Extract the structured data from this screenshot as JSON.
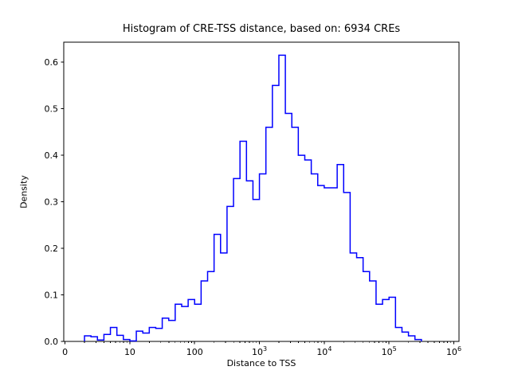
{
  "figure": {
    "background": "#ffffff"
  },
  "chart_data": {
    "type": "bar",
    "subtype": "step-histogram",
    "title": "Histogram of CRE-TSS distance, based on: 6934 CREs",
    "xlabel": "Distance to TSS",
    "ylabel": "Density",
    "x_scale": "log10",
    "line_color": "#0000ff",
    "axis_color": "#000000",
    "grid": false,
    "legend": false,
    "xlim_log10": [
      -0.02,
      6.08
    ],
    "ylim": [
      0,
      0.643
    ],
    "x_ticks": [
      {
        "v": 0,
        "label": "0"
      },
      {
        "v": 1,
        "label": "10"
      },
      {
        "v": 2,
        "label": "100"
      },
      {
        "v": 3,
        "label": "10^3"
      },
      {
        "v": 4,
        "label": "10^4"
      },
      {
        "v": 5,
        "label": "10^5"
      },
      {
        "v": 6,
        "label": "10^6"
      }
    ],
    "x_minor_ticks": true,
    "y_ticks": [
      0.0,
      0.1,
      0.2,
      0.3,
      0.4,
      0.5,
      0.6
    ],
    "bin_log10_start": 0.3,
    "bin_log10_width": 0.1,
    "densities": [
      0.012,
      0.01,
      0.003,
      0.015,
      0.03,
      0.013,
      0.004,
      0.001,
      0.022,
      0.018,
      0.03,
      0.028,
      0.05,
      0.045,
      0.08,
      0.075,
      0.09,
      0.08,
      0.13,
      0.15,
      0.23,
      0.19,
      0.29,
      0.35,
      0.43,
      0.345,
      0.305,
      0.36,
      0.46,
      0.55,
      0.615,
      0.49,
      0.46,
      0.4,
      0.39,
      0.36,
      0.335,
      0.33,
      0.33,
      0.38,
      0.32,
      0.19,
      0.18,
      0.15,
      0.13,
      0.08,
      0.09,
      0.095,
      0.03,
      0.02,
      0.012,
      0.004
    ]
  }
}
